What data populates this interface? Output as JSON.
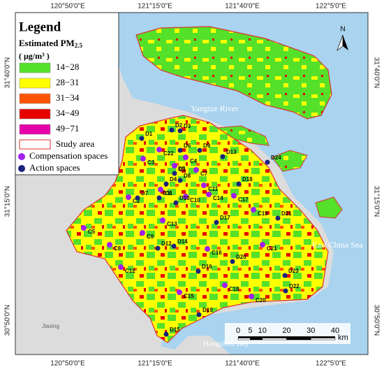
{
  "graticule": {
    "lon_labels": [
      "120°50'0\"E",
      "121°15'0\"E",
      "121°40'0\"E",
      "122°5'0\"E"
    ],
    "lat_labels": [
      "31°40'0\"N",
      "31°15'0\"N",
      "30°50'0\"N"
    ]
  },
  "legend": {
    "title": "Legend",
    "subtitle": "Estimated PM",
    "subscript": "2.5",
    "unit": "( μg/m³ )",
    "classes": [
      {
        "label": "14−28",
        "color": "#55e02a"
      },
      {
        "label": "28−31",
        "color": "#ffff00"
      },
      {
        "label": "31−34",
        "color": "#ff5500"
      },
      {
        "label": "34−49",
        "color": "#e60000"
      },
      {
        "label": "49−71",
        "color": "#e600a9"
      }
    ],
    "study_area": "Study area",
    "compensation": "Compensation spaces",
    "action": "Action spaces"
  },
  "places": [
    "Yangtze River",
    "East China Sea",
    "Hangzhou Bay",
    "Jiaxing"
  ],
  "north": "N",
  "scale": {
    "ticks": [
      0,
      5,
      10,
      20,
      30,
      40
    ],
    "unit": "km"
  },
  "action_spaces": [
    "D1",
    "D2",
    "D3",
    "D4",
    "D5",
    "D6",
    "D7",
    "D8",
    "D9",
    "D10",
    "D11",
    "D12",
    "D13",
    "D14",
    "D15",
    "D16",
    "D17",
    "D18",
    "D19",
    "D20",
    "D21",
    "D22",
    "D23",
    "D24"
  ],
  "compensation_spaces": [
    "C1",
    "C2",
    "C3",
    "C4",
    "C5",
    "C6",
    "C7",
    "C8",
    "C9",
    "C10",
    "C11",
    "C12",
    "C13",
    "C14",
    "C15",
    "C16",
    "C17",
    "C18",
    "C19",
    "C20",
    "C21",
    "C22"
  ]
}
